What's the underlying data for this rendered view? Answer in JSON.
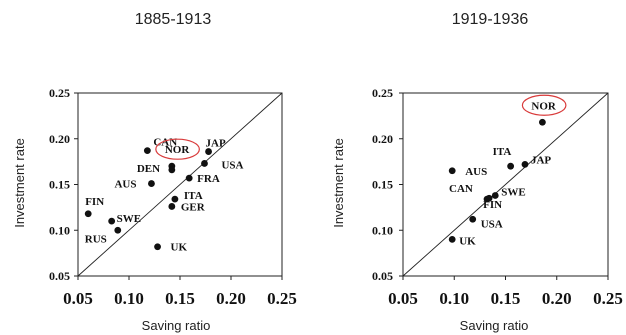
{
  "colors": {
    "ink": "#111111",
    "highlight": "#d93b3b",
    "frame": "#222222"
  },
  "chart_data": [
    {
      "type": "scatter",
      "title": "1885-1913",
      "xlabel": "Saving ratio",
      "ylabel": "Investment rate",
      "xlim": [
        0.05,
        0.25
      ],
      "ylim": [
        0.05,
        0.25
      ],
      "xticks": [
        "0.05",
        "0.10",
        "0.15",
        "0.20",
        "0.25"
      ],
      "yticks": [
        "0.25",
        "0.20",
        "0.15",
        "0.10",
        "0.05"
      ],
      "diagonal": true,
      "grid": false,
      "highlighted": "NOR",
      "points": [
        {
          "label": "CAN",
          "x": 0.118,
          "y": 0.187
        },
        {
          "label": "NOR",
          "x": 0.142,
          "y": 0.17
        },
        {
          "label": "JAP",
          "x": 0.178,
          "y": 0.186
        },
        {
          "label": "DEN",
          "x": 0.142,
          "y": 0.166
        },
        {
          "label": "USA",
          "x": 0.174,
          "y": 0.173
        },
        {
          "label": "FRA",
          "x": 0.159,
          "y": 0.157
        },
        {
          "label": "AUS",
          "x": 0.122,
          "y": 0.151
        },
        {
          "label": "ITA",
          "x": 0.145,
          "y": 0.134
        },
        {
          "label": "GER",
          "x": 0.142,
          "y": 0.126
        },
        {
          "label": "FIN",
          "x": 0.06,
          "y": 0.118
        },
        {
          "label": "SWE",
          "x": 0.083,
          "y": 0.11
        },
        {
          "label": "RUS",
          "x": 0.089,
          "y": 0.1
        },
        {
          "label": "UK",
          "x": 0.128,
          "y": 0.082
        }
      ]
    },
    {
      "type": "scatter",
      "title": "1919-1936",
      "xlabel": "Saving ratio",
      "ylabel": "Investment rate",
      "xlim": [
        0.05,
        0.25
      ],
      "ylim": [
        0.05,
        0.25
      ],
      "xticks": [
        "0.05",
        "0.10",
        "0.15",
        "0.20",
        "0.25"
      ],
      "yticks": [
        "0.25",
        "0.20",
        "0.15",
        "0.10",
        "0.05"
      ],
      "diagonal": true,
      "grid": false,
      "highlighted": "NOR",
      "points": [
        {
          "label": "NOR",
          "x": 0.186,
          "y": 0.218
        },
        {
          "label": "ITA",
          "x": 0.155,
          "y": 0.17
        },
        {
          "label": "JAP",
          "x": 0.169,
          "y": 0.172
        },
        {
          "label": "AUS",
          "x": 0.098,
          "y": 0.165
        },
        {
          "label": "CAN",
          "x": 0.132,
          "y": 0.134
        },
        {
          "label": "SWE",
          "x": 0.14,
          "y": 0.138
        },
        {
          "label": "FIN",
          "x": 0.134,
          "y": 0.135
        },
        {
          "label": "USA",
          "x": 0.118,
          "y": 0.112
        },
        {
          "label": "UK",
          "x": 0.098,
          "y": 0.09
        }
      ]
    }
  ]
}
